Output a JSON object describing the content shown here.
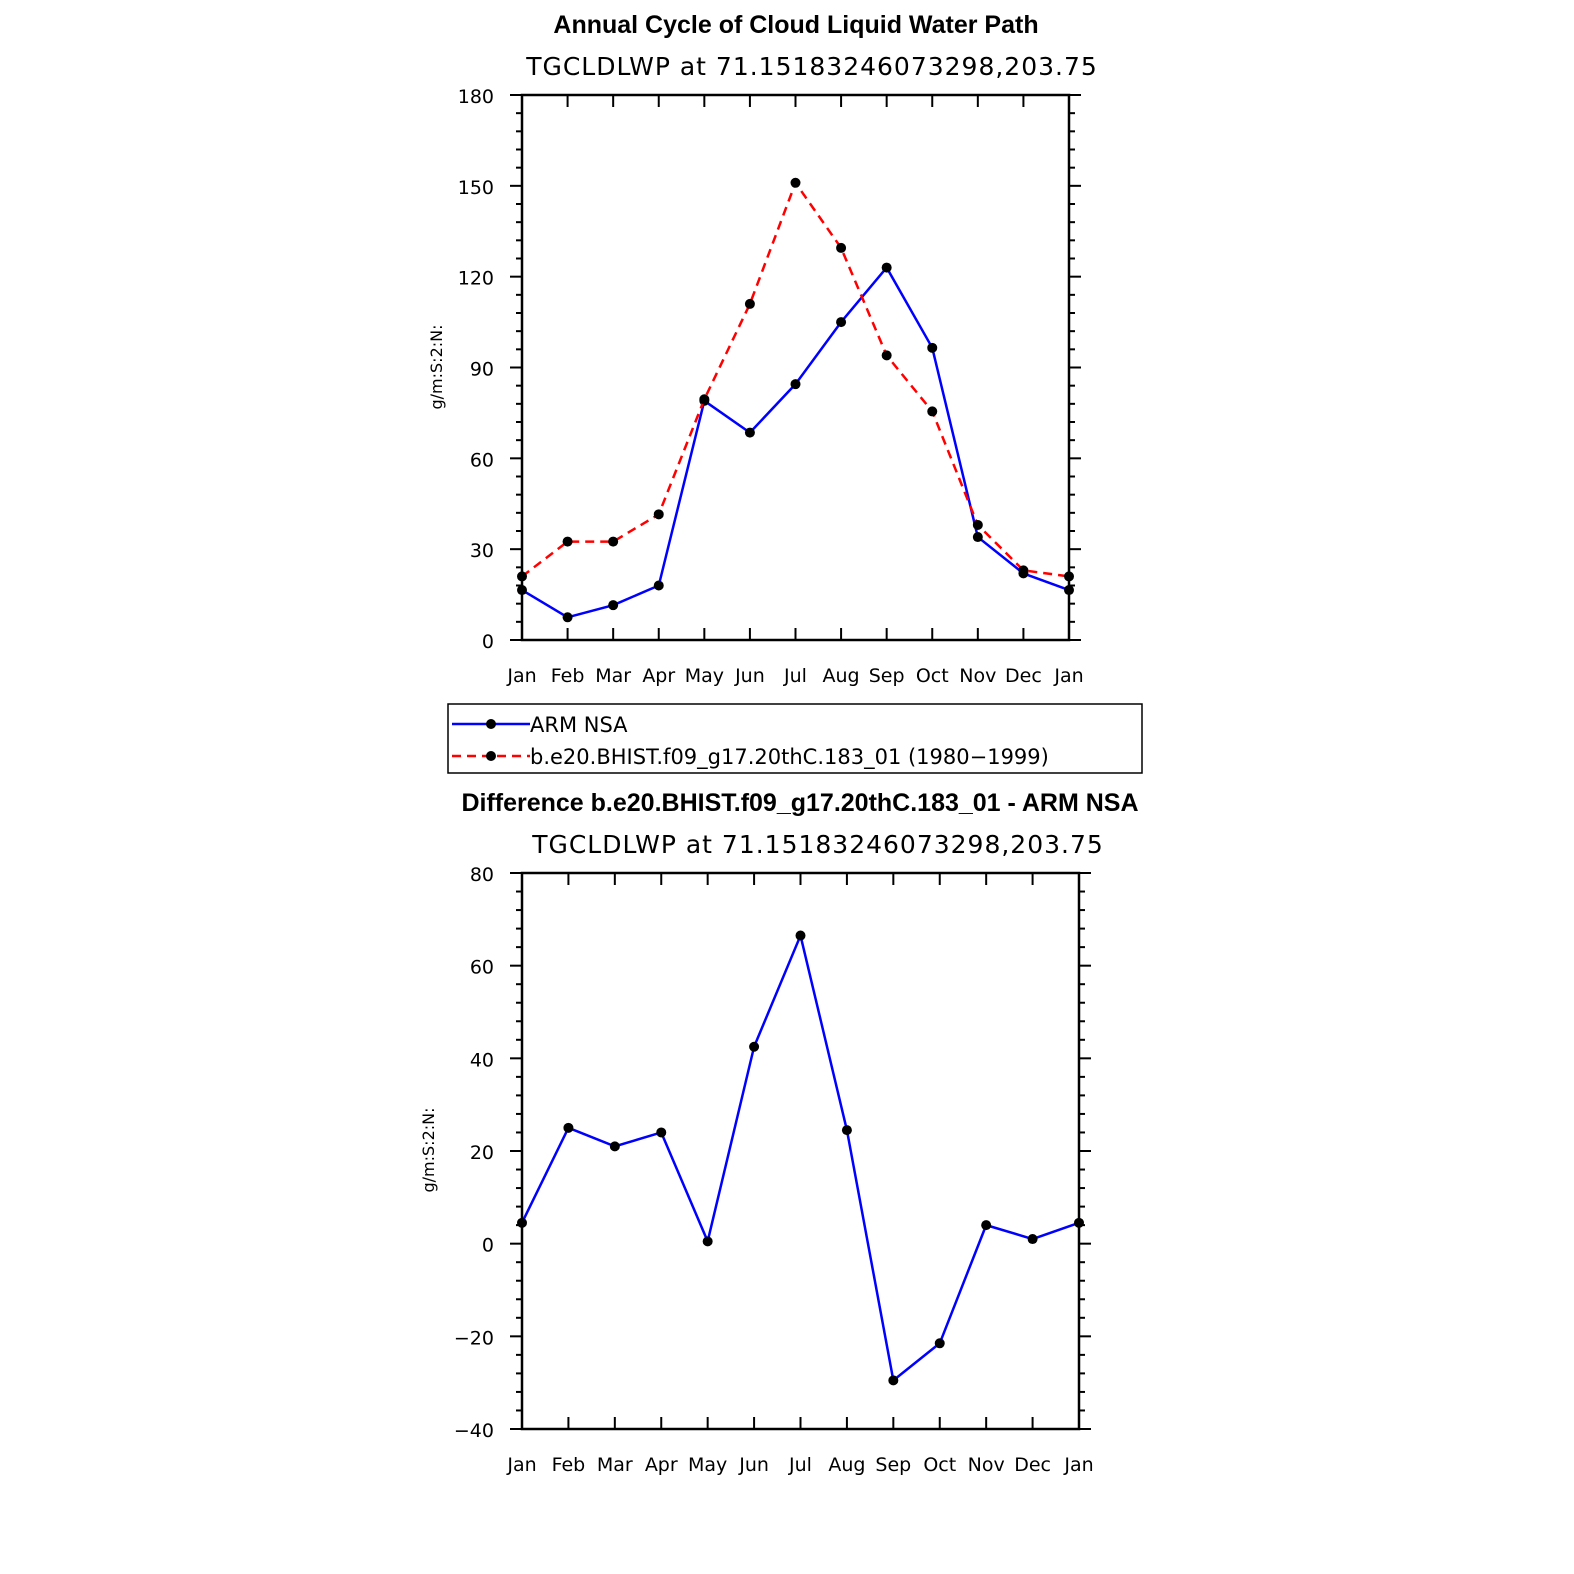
{
  "chart_data": [
    {
      "type": "line",
      "title": "Annual Cycle of Cloud Liquid Water Path",
      "subtitle": "TGCLDLWP  at 71.15183246073298,203.75",
      "ylabel": "g/m:S:2:N:",
      "categories": [
        "Jan",
        "Feb",
        "Mar",
        "Apr",
        "May",
        "Jun",
        "Jul",
        "Aug",
        "Sep",
        "Oct",
        "Nov",
        "Dec",
        "Jan"
      ],
      "ylim": [
        0,
        180
      ],
      "yticks": [
        0,
        30,
        60,
        90,
        120,
        150,
        180
      ],
      "series": [
        {
          "name": "ARM NSA",
          "color": "#0000ff",
          "dash": "solid",
          "values": [
            16.5,
            7.5,
            11.5,
            18,
            79,
            68.5,
            84.5,
            105,
            123,
            96.5,
            34,
            22,
            16.5
          ]
        },
        {
          "name": "b.e20.BHIST.f09_g17.20thC.183_01 (1980-1999)",
          "color": "#ff0000",
          "dash": "dashed",
          "values": [
            21,
            32.5,
            32.5,
            41.5,
            79.5,
            111,
            151,
            129.5,
            94,
            75.5,
            38,
            23,
            21
          ]
        }
      ]
    },
    {
      "type": "line",
      "title": "Difference b.e20.BHIST.f09_g17.20thC.183_01 - ARM NSA",
      "subtitle": "TGCLDLWP  at 71.15183246073298,203.75",
      "ylabel": "g/m:S:2:N:",
      "categories": [
        "Jan",
        "Feb",
        "Mar",
        "Apr",
        "May",
        "Jun",
        "Jul",
        "Aug",
        "Sep",
        "Oct",
        "Nov",
        "Dec",
        "Jan"
      ],
      "ylim": [
        -40,
        80
      ],
      "yticks": [
        -40,
        -20,
        0,
        20,
        40,
        60,
        80
      ],
      "ytick_labels": [
        "−40",
        "−20",
        "0",
        "20",
        "40",
        "60",
        "80"
      ],
      "series": [
        {
          "name": "Difference",
          "color": "#0000ff",
          "dash": "solid",
          "values": [
            4.5,
            25,
            21,
            24,
            0.5,
            42.5,
            66.5,
            24.5,
            -29.5,
            -21.5,
            4,
            1,
            4.5
          ]
        }
      ]
    }
  ],
  "legend": {
    "entries": [
      "ARM NSA",
      "b.e20.BHIST.f09_g17.20thC.183_01 (1980−1999)"
    ]
  }
}
